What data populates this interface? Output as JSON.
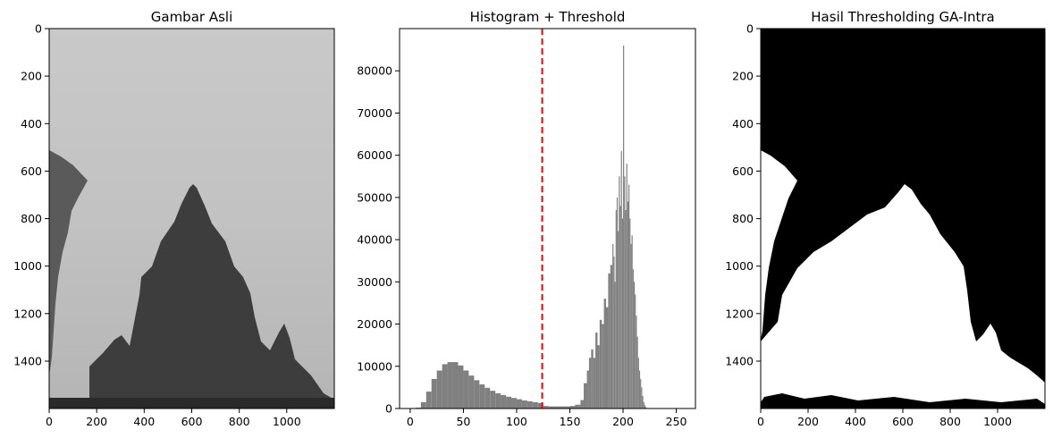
{
  "panels": [
    {
      "title": "Gambar Asli",
      "xticks": [
        "0",
        "200",
        "400",
        "600",
        "800",
        "1000"
      ],
      "yticks": [
        "0",
        "200",
        "400",
        "600",
        "800",
        "1000",
        "1200",
        "1400"
      ]
    },
    {
      "title": "Histogram + Threshold",
      "xticks": [
        "0",
        "50",
        "100",
        "150",
        "200",
        "250"
      ],
      "yticks": [
        "0",
        "10000",
        "20000",
        "30000",
        "40000",
        "50000",
        "60000",
        "70000",
        "80000"
      ]
    },
    {
      "title": "Hasil Thresholding GA-Intra",
      "xticks": [
        "0",
        "200",
        "400",
        "600",
        "800",
        "1000"
      ],
      "yticks": [
        "0",
        "200",
        "400",
        "600",
        "800",
        "1000",
        "1200",
        "1400"
      ]
    }
  ],
  "colors": {
    "histogram": "#808080",
    "threshold": "#ff0000",
    "sky": "#c9c9c9",
    "temple": "#3d3d3d"
  },
  "chart_data": [
    {
      "type": "image",
      "title": "Gambar Asli",
      "xlim": [
        0,
        1200
      ],
      "ylim": [
        1600,
        0
      ],
      "xticks": [
        0,
        200,
        400,
        600,
        800,
        1000
      ],
      "yticks": [
        0,
        200,
        400,
        600,
        800,
        1000,
        1200,
        1400
      ]
    },
    {
      "type": "bar",
      "title": "Histogram + Threshold",
      "xlim": [
        -10,
        268
      ],
      "ylim": [
        0,
        90000
      ],
      "threshold": 124,
      "threshold_style": "dashed",
      "x": [
        5,
        10,
        15,
        20,
        25,
        30,
        35,
        40,
        45,
        50,
        55,
        60,
        65,
        70,
        75,
        80,
        85,
        90,
        95,
        100,
        105,
        110,
        115,
        120,
        125,
        130,
        135,
        140,
        145,
        150,
        155,
        160,
        163,
        166,
        168,
        170,
        172,
        174,
        176,
        178,
        180,
        182,
        184,
        186,
        188,
        190,
        191,
        192,
        193,
        194,
        195,
        196,
        197,
        198,
        199,
        200,
        201,
        202,
        203,
        204,
        205,
        206,
        207,
        208,
        209,
        210,
        211,
        212,
        213,
        214,
        215,
        216,
        217,
        218,
        219,
        220,
        221,
        222
      ],
      "y": [
        200,
        1500,
        4000,
        7000,
        9000,
        10500,
        11000,
        11000,
        10200,
        9000,
        7800,
        6700,
        5700,
        4900,
        4200,
        3600,
        3200,
        2800,
        2500,
        2200,
        1900,
        1700,
        1500,
        1300,
        600,
        500,
        500,
        500,
        500,
        600,
        900,
        2000,
        6000,
        9000,
        12000,
        14000,
        12000,
        18000,
        15000,
        21000,
        20000,
        26000,
        24000,
        32000,
        34000,
        39000,
        36000,
        30000,
        47000,
        50000,
        42000,
        55000,
        48000,
        61000,
        45000,
        86000,
        55000,
        47000,
        58000,
        49000,
        53000,
        45000,
        39000,
        41000,
        33000,
        30000,
        27000,
        22000,
        17000,
        12000,
        9000,
        7000,
        5000,
        3000,
        1500,
        800,
        300,
        100
      ]
    },
    {
      "type": "image",
      "title": "Hasil Thresholding GA-Intra",
      "xlim": [
        0,
        1200
      ],
      "ylim": [
        1600,
        0
      ],
      "xticks": [
        0,
        200,
        400,
        600,
        800,
        1000
      ],
      "yticks": [
        0,
        200,
        400,
        600,
        800,
        1000,
        1200,
        1400
      ]
    }
  ]
}
